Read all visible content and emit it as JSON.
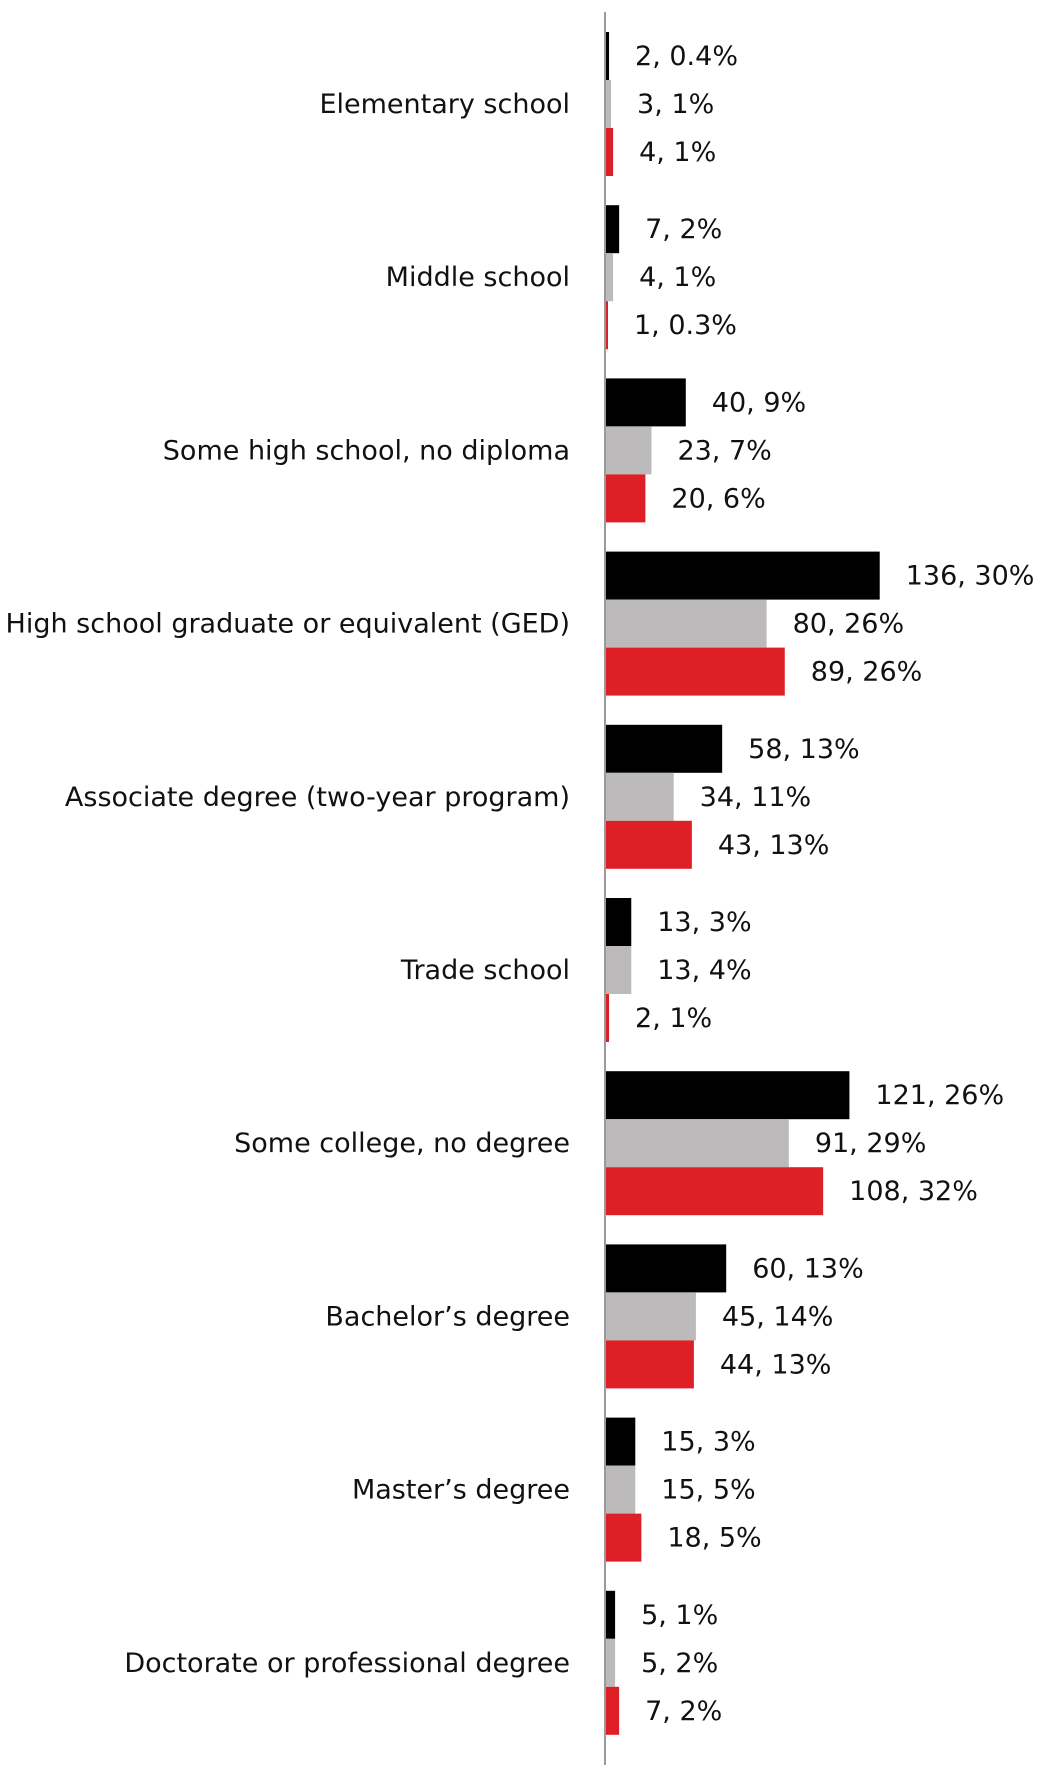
{
  "chart_data": {
    "type": "bar",
    "orientation": "horizontal",
    "title": "",
    "xlabel": "",
    "ylabel": "",
    "legend": "none",
    "grid": false,
    "xlim": [
      0,
      136
    ],
    "categories": [
      "Elementary school",
      "Middle school",
      "Some high school, no diploma",
      "High school graduate or equivalent (GED)",
      "Associate degree (two-year program)",
      "Trade school",
      "Some college, no degree",
      "Bachelor’s degree",
      "Master’s degree",
      "Doctorate or professional degree"
    ],
    "series": [
      {
        "color": "#000000",
        "values": [
          2,
          7,
          40,
          136,
          58,
          13,
          121,
          60,
          15,
          5
        ],
        "percents": [
          "0.4%",
          "2%",
          "9%",
          "30%",
          "13%",
          "3%",
          "26%",
          "13%",
          "3%",
          "1%"
        ]
      },
      {
        "color": "#bcbaba",
        "values": [
          3,
          4,
          23,
          80,
          34,
          13,
          91,
          45,
          15,
          5
        ],
        "percents": [
          "1%",
          "1%",
          "7%",
          "26%",
          "11%",
          "4%",
          "29%",
          "14%",
          "5%",
          "2%"
        ]
      },
      {
        "color": "#df1f26",
        "values": [
          4,
          1,
          20,
          89,
          43,
          2,
          108,
          44,
          18,
          7
        ],
        "percents": [
          "1%",
          "0.3%",
          "6%",
          "26%",
          "13%",
          "1%",
          "32%",
          "13%",
          "5%",
          "2%"
        ]
      }
    ],
    "data_labels": [
      [
        "2, 0.4%",
        "3, 1%",
        "4, 1%"
      ],
      [
        "7, 2%",
        "4, 1%",
        "1, 0.3%"
      ],
      [
        "40, 9%",
        "23, 7%",
        "20, 6%"
      ],
      [
        "136, 30%",
        "80, 26%",
        "89, 26%"
      ],
      [
        "58, 13%",
        "34, 11%",
        "43, 13%"
      ],
      [
        "13, 3%",
        "13, 4%",
        "2, 1%"
      ],
      [
        "121, 26%",
        "91, 29%",
        "108, 32%"
      ],
      [
        "60, 13%",
        "45, 14%",
        "44, 13%"
      ],
      [
        "15, 3%",
        "15, 5%",
        "18, 5%"
      ],
      [
        "5, 1%",
        "5, 2%",
        "7, 2%"
      ]
    ],
    "axis_color": "#9a9a9a"
  }
}
